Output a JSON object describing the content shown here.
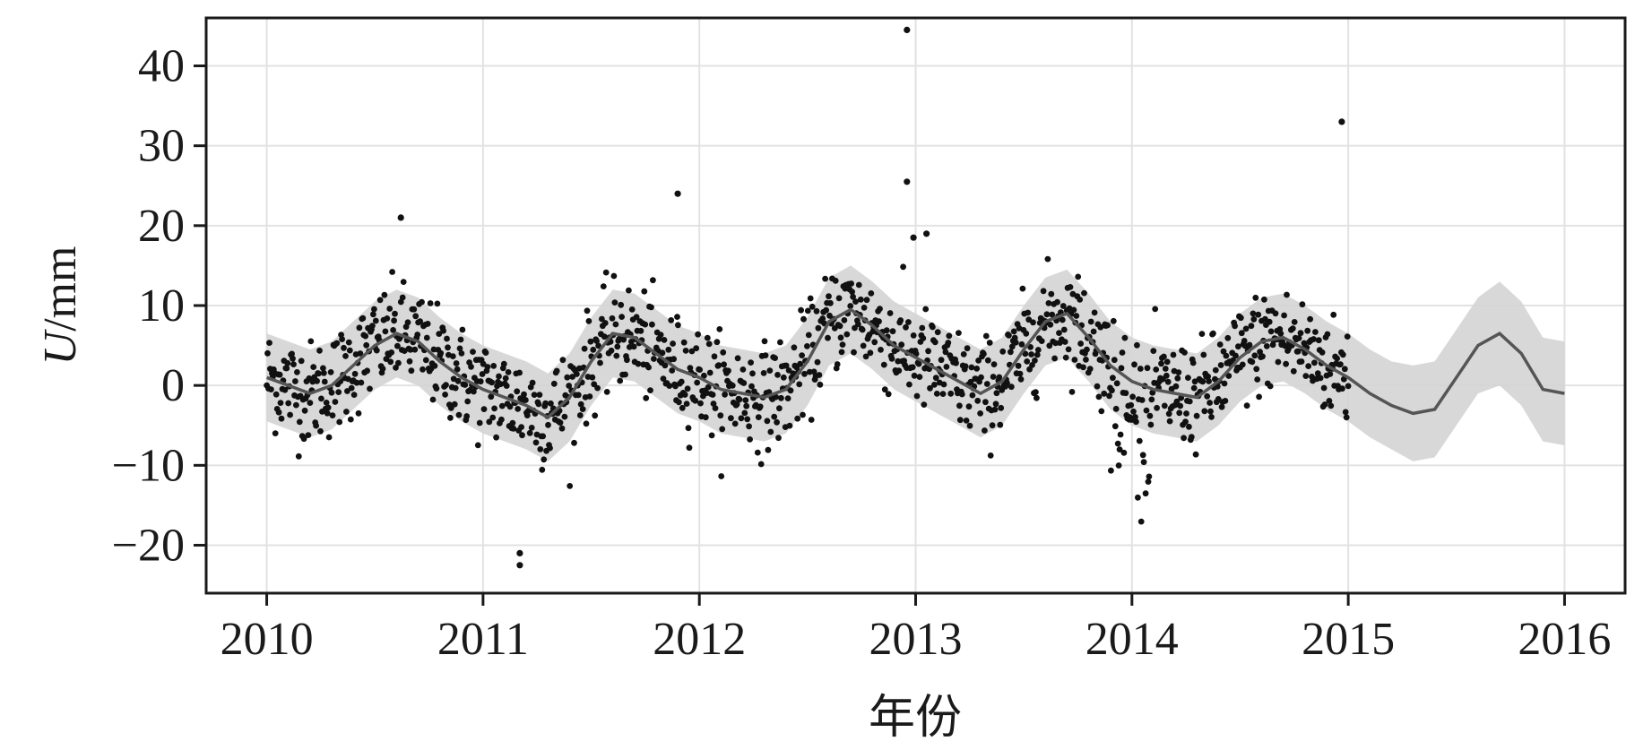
{
  "chart_data": {
    "type": "scatter",
    "title": "",
    "xlabel": "年份",
    "ylabel_italic": "U",
    "ylabel_unit": "/mm",
    "xlim": [
      2009.72,
      2016.28
    ],
    "ylim": [
      -26,
      46
    ],
    "x_ticks": [
      2010,
      2011,
      2012,
      2013,
      2014,
      2015,
      2016
    ],
    "x_tick_labels": [
      "2010",
      "2011",
      "2012",
      "2013",
      "2014",
      "2015",
      "2016"
    ],
    "y_ticks": [
      -20,
      -10,
      0,
      10,
      20,
      30,
      40
    ],
    "y_tick_labels": [
      "−20",
      "−10",
      "0",
      "10",
      "20",
      "30",
      "40"
    ],
    "grid": true,
    "legend": "none",
    "observed_range": [
      2010.0,
      2015.0
    ],
    "forecast_range": [
      2010.0,
      2016.0
    ],
    "colors": {
      "points": "#111111",
      "trend": "#555555",
      "band": "#d4d4d4",
      "grid": "#e2e2e2",
      "axes": "#1a1a1a"
    },
    "series": [
      {
        "role": "fitted",
        "x": [
          2010.0,
          2010.1,
          2010.2,
          2010.3,
          2010.4,
          2010.5,
          2010.6,
          2010.7,
          2010.8,
          2010.9,
          2011.0,
          2011.1,
          2011.2,
          2011.3,
          2011.4,
          2011.5,
          2011.6,
          2011.7,
          2011.8,
          2011.9,
          2012.0,
          2012.1,
          2012.2,
          2012.3,
          2012.4,
          2012.5,
          2012.6,
          2012.7,
          2012.8,
          2012.9,
          2013.0,
          2013.1,
          2013.2,
          2013.3,
          2013.4,
          2013.5,
          2013.6,
          2013.7,
          2013.8,
          2013.9,
          2014.0,
          2014.1,
          2014.2,
          2014.3,
          2014.4,
          2014.5,
          2014.6,
          2014.7,
          2014.8,
          2014.9,
          2015.0,
          2015.1,
          2015.2,
          2015.3,
          2015.4,
          2015.5,
          2015.6,
          2015.7,
          2015.8,
          2015.9,
          2016.0
        ],
        "y": [
          1.0,
          0.0,
          -1.0,
          0.0,
          2.5,
          5.0,
          6.5,
          5.5,
          3.0,
          1.0,
          -0.5,
          -1.5,
          -2.5,
          -4.0,
          -1.5,
          3.0,
          6.5,
          6.0,
          4.0,
          2.0,
          1.0,
          -0.5,
          -1.0,
          -1.5,
          -0.5,
          3.0,
          8.0,
          9.5,
          7.5,
          5.0,
          3.5,
          2.0,
          0.5,
          -1.0,
          0.5,
          4.5,
          8.0,
          9.0,
          6.0,
          2.5,
          0.5,
          -0.5,
          -1.0,
          -1.5,
          0.5,
          3.5,
          5.5,
          6.0,
          4.5,
          2.5,
          1.0,
          -1.0,
          -2.5,
          -3.5,
          -3.0,
          1.0,
          5.0,
          6.5,
          4.0,
          -0.5,
          -1.0
        ],
        "lower": [
          -4.5,
          -5.5,
          -6.5,
          -5.5,
          -3.0,
          -0.5,
          1.0,
          0.0,
          -2.5,
          -4.5,
          -6.0,
          -7.0,
          -8.0,
          -9.5,
          -7.0,
          -2.5,
          1.0,
          0.5,
          -1.5,
          -3.5,
          -4.5,
          -6.0,
          -6.5,
          -7.0,
          -6.0,
          -2.5,
          2.5,
          4.0,
          2.0,
          -0.5,
          -2.0,
          -3.5,
          -5.0,
          -6.5,
          -5.0,
          -1.0,
          2.5,
          3.5,
          0.5,
          -3.0,
          -5.0,
          -6.0,
          -6.5,
          -7.0,
          -5.0,
          -2.0,
          0.0,
          0.5,
          -1.0,
          -3.0,
          -4.5,
          -6.5,
          -8.0,
          -9.5,
          -9.0,
          -5.0,
          -1.0,
          0.0,
          -2.5,
          -7.0,
          -7.5
        ],
        "upper": [
          6.5,
          5.5,
          4.5,
          5.5,
          8.0,
          10.5,
          12.0,
          11.0,
          8.5,
          6.5,
          5.0,
          4.0,
          3.0,
          1.5,
          4.0,
          8.5,
          12.0,
          11.5,
          9.5,
          7.5,
          6.5,
          5.0,
          4.5,
          4.0,
          5.0,
          8.5,
          13.5,
          15.0,
          13.0,
          10.5,
          9.0,
          7.5,
          6.0,
          4.5,
          6.0,
          10.0,
          13.5,
          14.5,
          11.5,
          8.0,
          6.0,
          5.0,
          4.5,
          4.0,
          6.0,
          9.0,
          11.0,
          11.5,
          10.0,
          8.0,
          6.5,
          4.5,
          3.0,
          2.5,
          3.0,
          7.0,
          11.0,
          13.0,
          10.5,
          6.0,
          5.5
        ]
      },
      {
        "role": "observed",
        "note_outliers_x": [
          2010.62,
          2011.17,
          2011.17,
          2011.9,
          2012.96,
          2012.96,
          2012.99,
          2013.05,
          2014.97
        ],
        "note_outliers_y": [
          21.0,
          -21.0,
          -22.5,
          24.0,
          44.5,
          25.5,
          18.5,
          19.0,
          33.0
        ],
        "generator": {
          "count": 1250,
          "x_start": 2010.0,
          "x_end": 2015.0,
          "noise_mm": 3.2
        }
      }
    ]
  }
}
